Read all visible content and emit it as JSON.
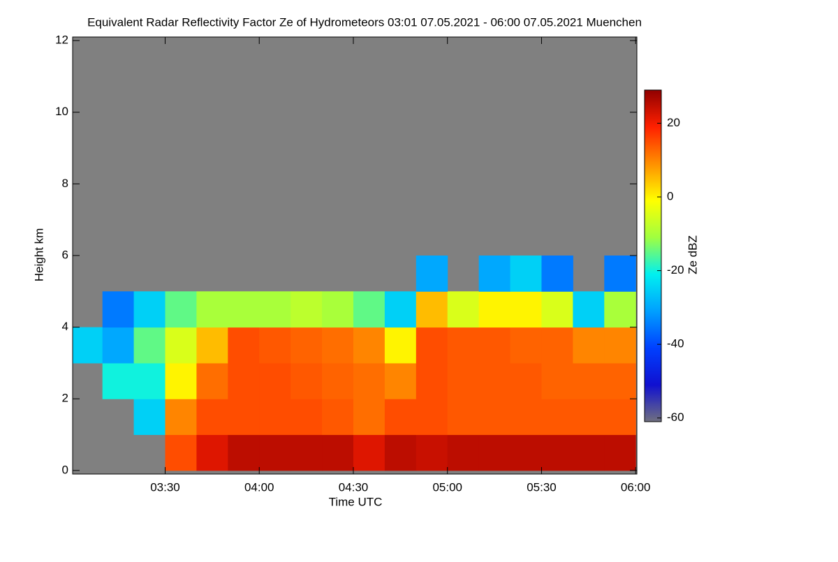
{
  "chart_data": {
    "type": "heatmap",
    "title": "Equivalent Radar Reflectivity Factor Ze of Hydrometeors   03:01 07.05.2021 - 06:00 07.05.2021 Muenchen",
    "x_label": "Time UTC",
    "y_label": "Height km",
    "colorbar_label": "Ze dBZ",
    "x": [
      185,
      195,
      205,
      215,
      225,
      235,
      245,
      255,
      265,
      275,
      285,
      295,
      305,
      315,
      325,
      335,
      345,
      355
    ],
    "y": [
      0.5,
      1.5,
      2.5,
      3.5,
      4.5,
      5.5,
      6.5,
      7.5,
      8.5,
      9.5,
      10.5,
      11.5
    ],
    "values": [
      [
        null,
        null,
        null,
        15,
        22,
        25,
        25,
        25,
        25,
        22,
        25,
        24,
        25,
        25,
        25,
        25,
        25,
        25
      ],
      [
        null,
        null,
        -25,
        10,
        15,
        15,
        15,
        15,
        14,
        12,
        15,
        15,
        14,
        14,
        14,
        14,
        14,
        14
      ],
      [
        null,
        -20,
        -20,
        0,
        12,
        15,
        15,
        14,
        13,
        12,
        10,
        15,
        14,
        14,
        14,
        13,
        13,
        13
      ],
      [
        -25,
        -30,
        -15,
        -5,
        5,
        15,
        14,
        13,
        12,
        10,
        0,
        15,
        14,
        14,
        13,
        13,
        10,
        10
      ],
      [
        null,
        -35,
        -25,
        -15,
        -10,
        -10,
        -10,
        -8,
        -10,
        -15,
        -25,
        5,
        -5,
        0,
        0,
        -5,
        -25,
        -10
      ],
      [
        null,
        null,
        null,
        null,
        null,
        null,
        null,
        null,
        null,
        null,
        null,
        -30,
        null,
        -30,
        -25,
        -35,
        null,
        -35
      ],
      [
        null,
        null,
        null,
        null,
        null,
        null,
        null,
        null,
        null,
        null,
        null,
        null,
        null,
        null,
        null,
        null,
        null,
        null
      ],
      [
        null,
        null,
        null,
        null,
        null,
        null,
        null,
        null,
        null,
        null,
        null,
        null,
        null,
        null,
        null,
        null,
        null,
        null
      ],
      [
        null,
        null,
        null,
        null,
        null,
        null,
        null,
        null,
        null,
        null,
        null,
        null,
        null,
        null,
        null,
        null,
        null,
        null
      ],
      [
        null,
        null,
        null,
        null,
        null,
        null,
        null,
        null,
        null,
        null,
        null,
        null,
        null,
        null,
        null,
        null,
        null,
        null
      ],
      [
        null,
        null,
        null,
        null,
        null,
        null,
        null,
        null,
        null,
        null,
        null,
        null,
        null,
        null,
        null,
        null,
        null,
        null
      ],
      [
        null,
        null,
        null,
        null,
        null,
        null,
        null,
        null,
        null,
        null,
        null,
        null,
        null,
        null,
        null,
        null,
        null,
        null
      ]
    ],
    "xlim": [
      180.5,
      360.4
    ],
    "xticks": [
      {
        "value": 210,
        "label": "03:30"
      },
      {
        "value": 240,
        "label": "04:00"
      },
      {
        "value": 270,
        "label": "04:30"
      },
      {
        "value": 300,
        "label": "05:00"
      },
      {
        "value": 330,
        "label": "05:30"
      },
      {
        "value": 360,
        "label": "06:00"
      }
    ],
    "ylim": [
      -0.1,
      12.1
    ],
    "yticks": [
      0,
      2,
      4,
      6,
      8,
      10,
      12
    ],
    "zlim": [
      -61,
      29
    ],
    "zticks": [
      -60,
      -40,
      -20,
      0,
      20
    ],
    "colormap": [
      "#707080",
      "#1010d0",
      "#0040ff",
      "#00a0ff",
      "#00f0f0",
      "#a0ff40",
      "#ffff00",
      "#ff9000",
      "#ff2000",
      "#900000"
    ],
    "missing_color": "#808080"
  }
}
